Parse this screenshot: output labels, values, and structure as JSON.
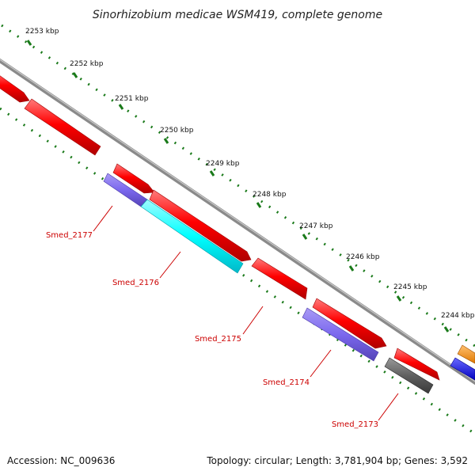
{
  "title": "Sinorhizobium medicae WSM419, complete genome",
  "ticks": [
    "2253 kbp",
    "2252 kbp",
    "2251 kbp",
    "2250 kbp",
    "2249 kbp",
    "2248 kbp",
    "2247 kbp",
    "2246 kbp",
    "2245 kbp",
    "2244 kbp"
  ],
  "genes": [
    "Smed_2177",
    "Smed_2176",
    "Smed_2175",
    "Smed_2174",
    "Smed_2173"
  ],
  "footer": {
    "accession": "Accession: NC_009636",
    "summary": "Topology: circular; Length: 3,781,904 bp; Genes: 3,592"
  },
  "colors": {
    "forward": "#ff0000",
    "purple": "#7b68ee",
    "cyan": "#00ffff",
    "gray": "#606060",
    "orange": "#ff8c00",
    "blue": "#0000ff",
    "label": "#cc0000",
    "dots": "#1a7a1a"
  }
}
